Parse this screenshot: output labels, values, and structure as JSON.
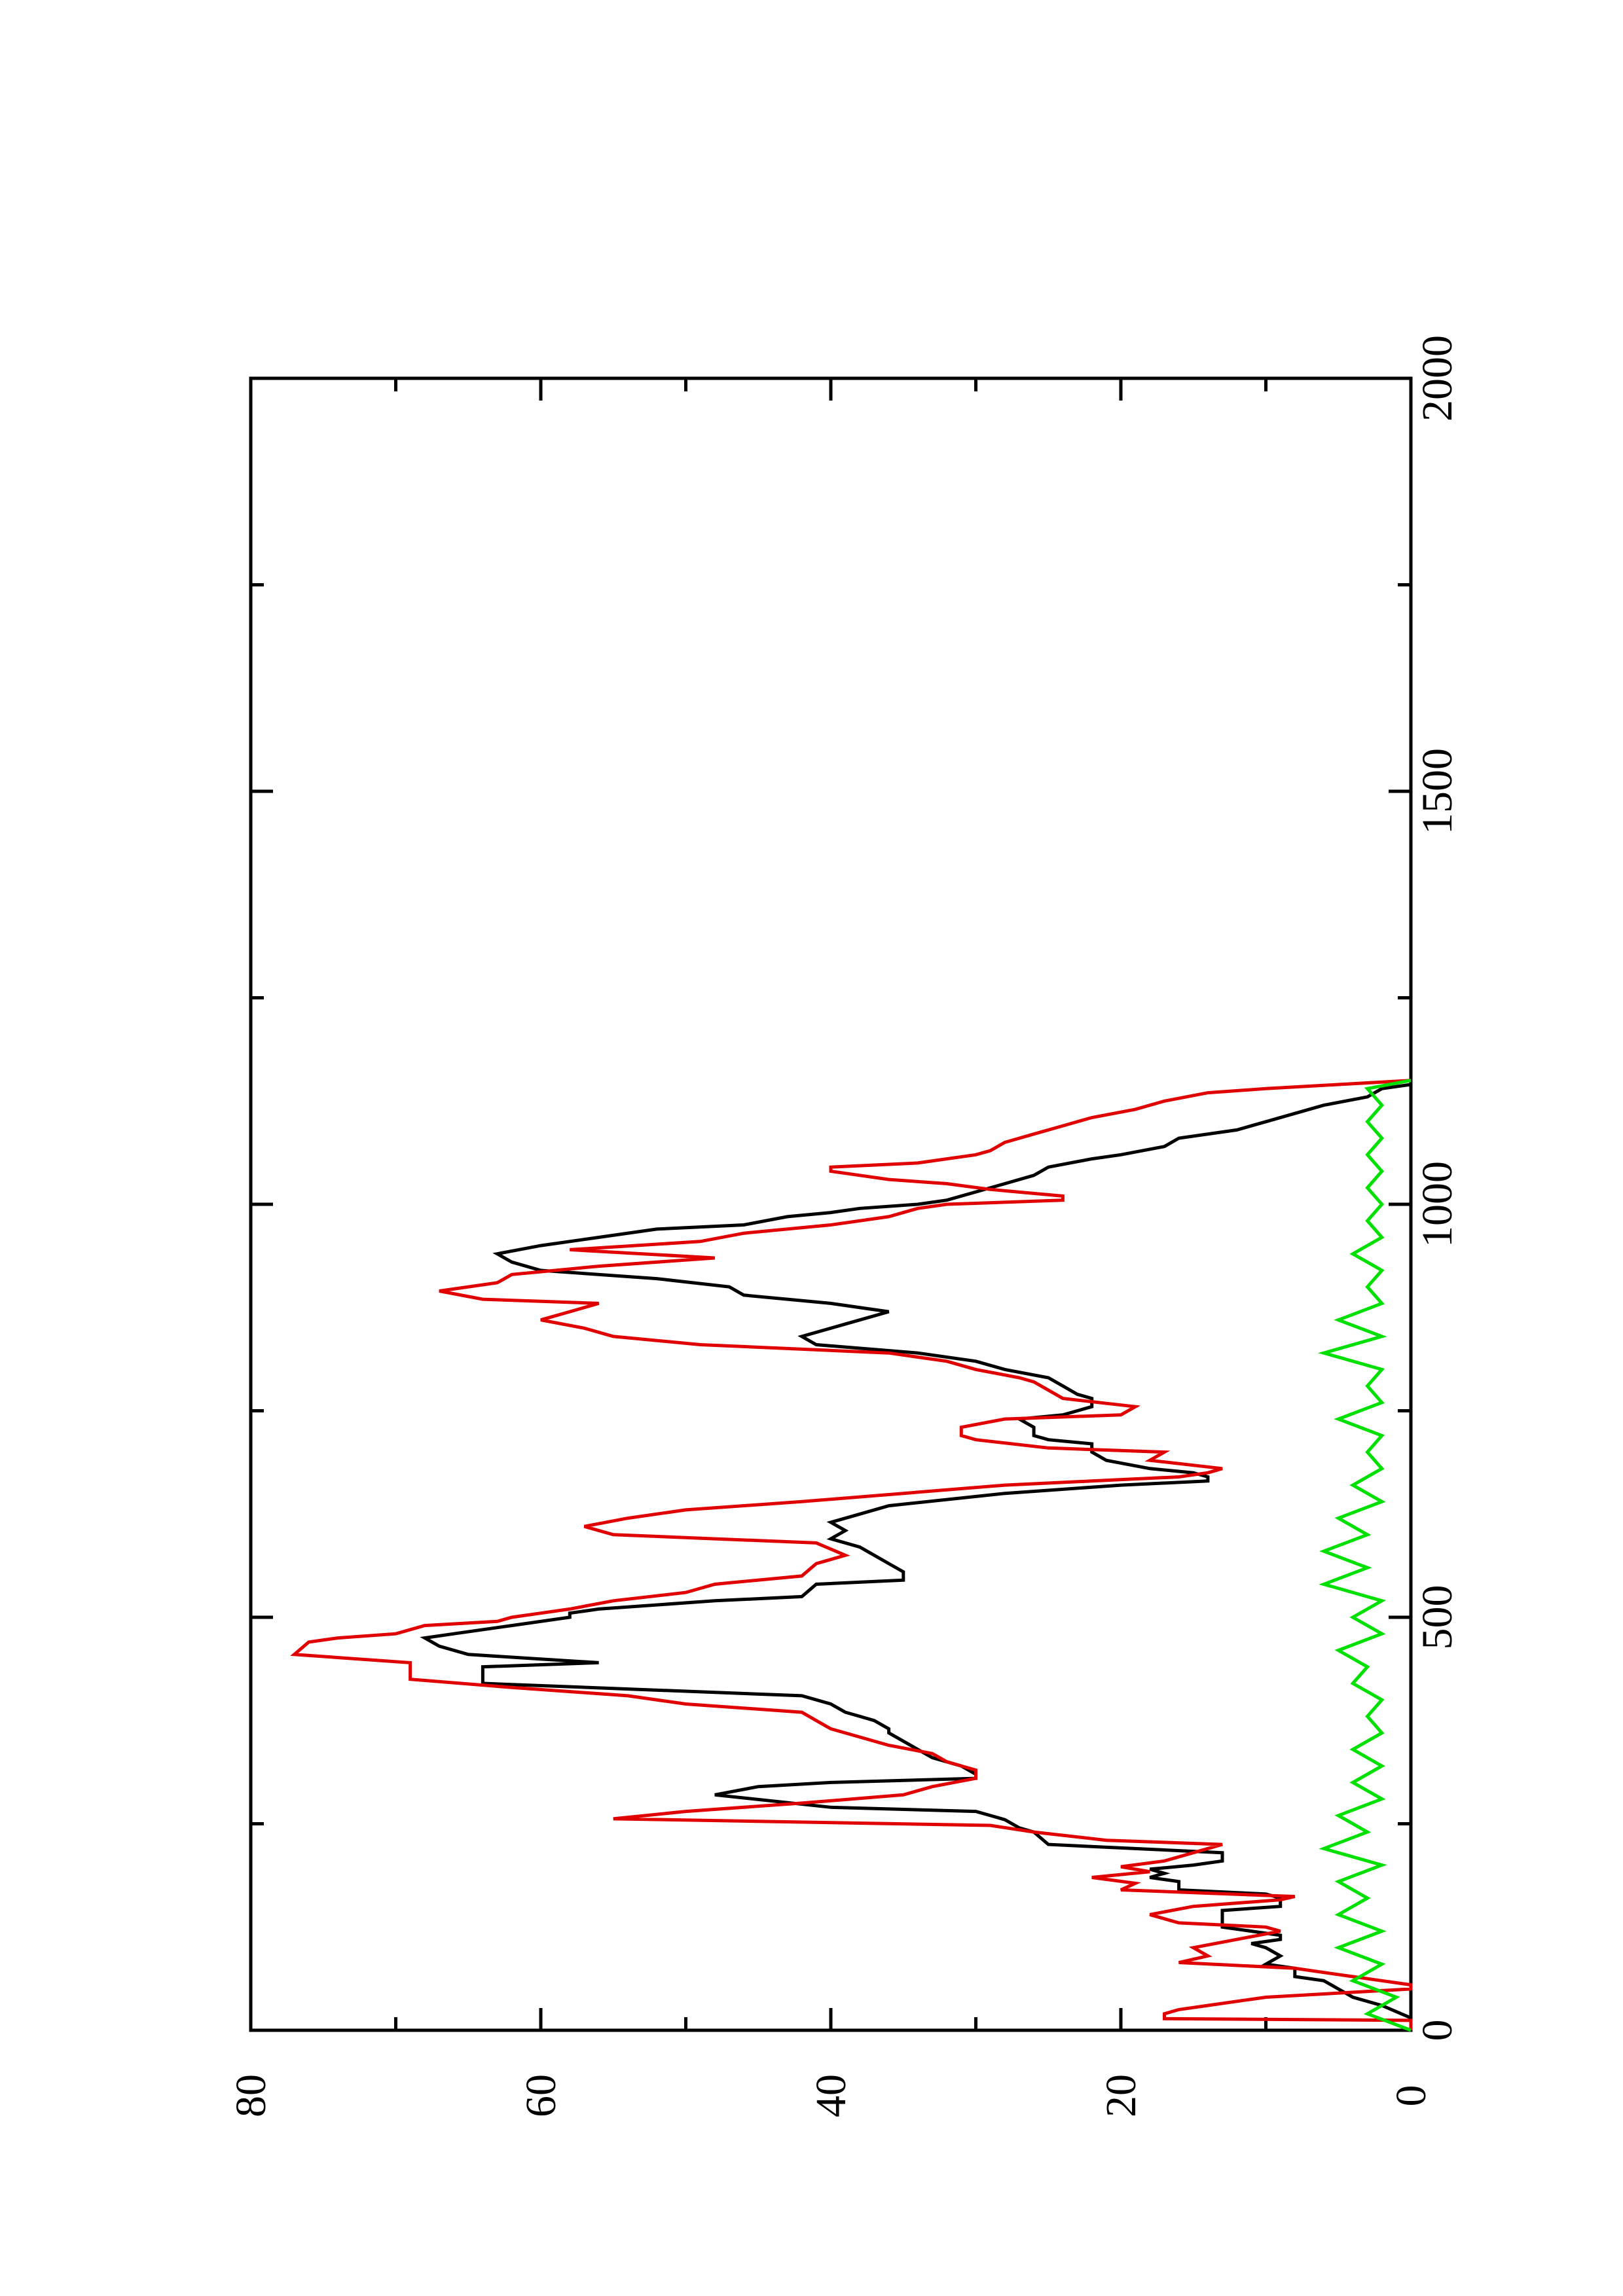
{
  "chart_data": {
    "type": "line",
    "title": "",
    "xlabel": "",
    "ylabel": "",
    "orientation": "rotated-90-ccw",
    "xlim": [
      0,
      2000
    ],
    "ylim": [
      0,
      80
    ],
    "x_ticks": [
      "0",
      "500",
      "1000",
      "1500",
      "2000"
    ],
    "x_minor_ticks": [
      250,
      750,
      1250,
      1750
    ],
    "y_ticks": [
      "0",
      "20",
      "40",
      "60",
      "80"
    ],
    "y_minor_ticks": [
      10,
      30,
      50,
      70
    ],
    "grid": false,
    "legend": "none",
    "series": [
      {
        "color": "#000000",
        "points": [
          [
            0,
            0
          ],
          [
            15,
            0
          ],
          [
            30,
            2
          ],
          [
            40,
            4
          ],
          [
            50,
            5
          ],
          [
            60,
            6
          ],
          [
            65,
            8
          ],
          [
            75,
            8
          ],
          [
            80,
            10
          ],
          [
            90,
            9
          ],
          [
            100,
            10
          ],
          [
            105,
            11
          ],
          [
            110,
            9
          ],
          [
            115,
            9
          ],
          [
            125,
            13
          ],
          [
            145,
            13
          ],
          [
            150,
            9
          ],
          [
            160,
            9
          ],
          [
            165,
            10
          ],
          [
            170,
            16
          ],
          [
            180,
            16
          ],
          [
            185,
            18
          ],
          [
            190,
            17
          ],
          [
            195,
            18
          ],
          [
            200,
            15
          ],
          [
            205,
            13
          ],
          [
            215,
            13
          ],
          [
            225,
            25
          ],
          [
            240,
            26
          ],
          [
            245,
            27
          ],
          [
            255,
            28
          ],
          [
            260,
            29
          ],
          [
            265,
            30
          ],
          [
            270,
            40
          ],
          [
            285,
            48
          ],
          [
            295,
            45
          ],
          [
            300,
            40
          ],
          [
            305,
            30
          ],
          [
            310,
            30
          ],
          [
            320,
            31
          ],
          [
            330,
            33
          ],
          [
            340,
            34
          ],
          [
            350,
            35
          ],
          [
            360,
            36
          ],
          [
            365,
            36
          ],
          [
            375,
            37
          ],
          [
            380,
            38
          ],
          [
            385,
            39
          ],
          [
            395,
            40
          ],
          [
            405,
            42
          ],
          [
            420,
            64
          ],
          [
            440,
            64
          ],
          [
            445,
            56
          ],
          [
            455,
            65
          ],
          [
            465,
            67
          ],
          [
            475,
            68
          ],
          [
            480,
            66
          ],
          [
            490,
            62
          ],
          [
            500,
            58
          ],
          [
            505,
            58
          ],
          [
            510,
            56
          ],
          [
            520,
            48
          ],
          [
            525,
            42
          ],
          [
            540,
            41
          ],
          [
            545,
            35
          ],
          [
            555,
            35
          ],
          [
            565,
            36
          ],
          [
            575,
            37
          ],
          [
            585,
            38
          ],
          [
            595,
            40
          ],
          [
            605,
            39
          ],
          [
            615,
            40
          ],
          [
            625,
            38
          ],
          [
            635,
            36
          ],
          [
            650,
            28
          ],
          [
            660,
            20
          ],
          [
            665,
            14
          ],
          [
            670,
            14
          ],
          [
            675,
            15
          ],
          [
            680,
            18
          ],
          [
            690,
            21
          ],
          [
            700,
            22
          ],
          [
            710,
            22
          ],
          [
            715,
            25
          ],
          [
            720,
            26
          ],
          [
            730,
            26
          ],
          [
            740,
            27
          ],
          [
            745,
            24
          ],
          [
            755,
            22
          ],
          [
            765,
            22
          ],
          [
            770,
            23
          ],
          [
            780,
            24
          ],
          [
            790,
            25
          ],
          [
            800,
            28
          ],
          [
            810,
            30
          ],
          [
            820,
            34
          ],
          [
            830,
            41
          ],
          [
            840,
            42
          ],
          [
            850,
            40
          ],
          [
            860,
            38
          ],
          [
            870,
            36
          ],
          [
            880,
            40
          ],
          [
            890,
            46
          ],
          [
            900,
            47
          ],
          [
            910,
            52
          ],
          [
            920,
            60
          ],
          [
            930,
            62
          ],
          [
            940,
            63
          ],
          [
            950,
            60
          ],
          [
            960,
            56
          ],
          [
            970,
            52
          ],
          [
            975,
            46
          ],
          [
            985,
            43
          ],
          [
            990,
            40
          ],
          [
            995,
            38
          ],
          [
            1000,
            34
          ],
          [
            1005,
            32
          ],
          [
            1015,
            30
          ],
          [
            1025,
            28
          ],
          [
            1035,
            26
          ],
          [
            1045,
            25
          ],
          [
            1055,
            22
          ],
          [
            1060,
            20
          ],
          [
            1070,
            17
          ],
          [
            1080,
            16
          ],
          [
            1090,
            12
          ],
          [
            1100,
            10
          ],
          [
            1110,
            8
          ],
          [
            1120,
            6
          ],
          [
            1130,
            3
          ],
          [
            1140,
            2
          ],
          [
            1145,
            0
          ],
          [
            1150,
            0
          ]
        ]
      },
      {
        "color": "#e00000",
        "points": [
          [
            0,
            0
          ],
          [
            12,
            0
          ],
          [
            14,
            17
          ],
          [
            20,
            17
          ],
          [
            25,
            16
          ],
          [
            30,
            14
          ],
          [
            40,
            10
          ],
          [
            50,
            0
          ],
          [
            55,
            0
          ],
          [
            60,
            2
          ],
          [
            65,
            4
          ],
          [
            70,
            6
          ],
          [
            75,
            8
          ],
          [
            82,
            16
          ],
          [
            90,
            14
          ],
          [
            100,
            15
          ],
          [
            110,
            12
          ],
          [
            120,
            9
          ],
          [
            125,
            10
          ],
          [
            130,
            16
          ],
          [
            140,
            18
          ],
          [
            150,
            15
          ],
          [
            158,
            9
          ],
          [
            162,
            8
          ],
          [
            170,
            20
          ],
          [
            178,
            19
          ],
          [
            185,
            22
          ],
          [
            192,
            18
          ],
          [
            198,
            20
          ],
          [
            205,
            17
          ],
          [
            215,
            15
          ],
          [
            225,
            13
          ],
          [
            230,
            21
          ],
          [
            240,
            26
          ],
          [
            248,
            29
          ],
          [
            256,
            55
          ],
          [
            265,
            50
          ],
          [
            275,
            42
          ],
          [
            285,
            35
          ],
          [
            295,
            33
          ],
          [
            305,
            30
          ],
          [
            315,
            30
          ],
          [
            325,
            32
          ],
          [
            335,
            33
          ],
          [
            345,
            36
          ],
          [
            355,
            38
          ],
          [
            365,
            40
          ],
          [
            375,
            41
          ],
          [
            385,
            42
          ],
          [
            395,
            50
          ],
          [
            405,
            54
          ],
          [
            415,
            62
          ],
          [
            425,
            69
          ],
          [
            445,
            69
          ],
          [
            450,
            73
          ],
          [
            455,
            77
          ],
          [
            470,
            76
          ],
          [
            475,
            74
          ],
          [
            480,
            70
          ],
          [
            490,
            68
          ],
          [
            495,
            63
          ],
          [
            500,
            62
          ],
          [
            505,
            60
          ],
          [
            510,
            58
          ],
          [
            520,
            55
          ],
          [
            530,
            50
          ],
          [
            540,
            48
          ],
          [
            550,
            42
          ],
          [
            565,
            41
          ],
          [
            570,
            40
          ],
          [
            575,
            39
          ],
          [
            590,
            41
          ],
          [
            600,
            55
          ],
          [
            610,
            57
          ],
          [
            620,
            54
          ],
          [
            630,
            50
          ],
          [
            640,
            42
          ],
          [
            650,
            35
          ],
          [
            660,
            28
          ],
          [
            665,
            22
          ],
          [
            670,
            16
          ],
          [
            675,
            14
          ],
          [
            680,
            13
          ],
          [
            690,
            18
          ],
          [
            700,
            17
          ],
          [
            705,
            25
          ],
          [
            715,
            30
          ],
          [
            720,
            31
          ],
          [
            730,
            31
          ],
          [
            740,
            28
          ],
          [
            745,
            20
          ],
          [
            755,
            19
          ],
          [
            765,
            24
          ],
          [
            775,
            25
          ],
          [
            785,
            26
          ],
          [
            790,
            27
          ],
          [
            800,
            30
          ],
          [
            810,
            32
          ],
          [
            820,
            36
          ],
          [
            830,
            49
          ],
          [
            840,
            55
          ],
          [
            850,
            57
          ],
          [
            860,
            60
          ],
          [
            870,
            58
          ],
          [
            880,
            56
          ],
          [
            885,
            64
          ],
          [
            895,
            67
          ],
          [
            905,
            63
          ],
          [
            915,
            62
          ],
          [
            925,
            56
          ],
          [
            935,
            48
          ],
          [
            945,
            58
          ],
          [
            955,
            49
          ],
          [
            965,
            46
          ],
          [
            975,
            40
          ],
          [
            985,
            36
          ],
          [
            995,
            34
          ],
          [
            1000,
            32
          ],
          [
            1005,
            24
          ],
          [
            1010,
            24
          ],
          [
            1018,
            29
          ],
          [
            1025,
            32
          ],
          [
            1030,
            36
          ],
          [
            1035,
            38
          ],
          [
            1040,
            40
          ],
          [
            1045,
            40
          ],
          [
            1050,
            34
          ],
          [
            1060,
            30
          ],
          [
            1065,
            29
          ],
          [
            1075,
            28
          ],
          [
            1085,
            26
          ],
          [
            1095,
            24
          ],
          [
            1105,
            22
          ],
          [
            1115,
            19
          ],
          [
            1125,
            17
          ],
          [
            1135,
            14
          ],
          [
            1140,
            10
          ],
          [
            1145,
            5
          ],
          [
            1150,
            0
          ]
        ]
      },
      {
        "color": "#00e000",
        "points": [
          [
            0,
            0
          ],
          [
            20,
            3
          ],
          [
            40,
            1
          ],
          [
            60,
            4
          ],
          [
            80,
            2
          ],
          [
            100,
            5
          ],
          [
            120,
            2
          ],
          [
            140,
            5
          ],
          [
            160,
            3
          ],
          [
            180,
            5
          ],
          [
            200,
            2
          ],
          [
            220,
            6
          ],
          [
            240,
            3
          ],
          [
            260,
            5
          ],
          [
            280,
            2
          ],
          [
            300,
            4
          ],
          [
            320,
            2
          ],
          [
            340,
            4
          ],
          [
            360,
            2
          ],
          [
            380,
            3
          ],
          [
            400,
            2
          ],
          [
            420,
            4
          ],
          [
            440,
            3
          ],
          [
            460,
            5
          ],
          [
            480,
            2
          ],
          [
            500,
            4
          ],
          [
            520,
            2
          ],
          [
            540,
            6
          ],
          [
            560,
            3
          ],
          [
            580,
            6
          ],
          [
            600,
            3
          ],
          [
            620,
            5
          ],
          [
            640,
            2
          ],
          [
            660,
            4
          ],
          [
            680,
            2
          ],
          [
            700,
            3
          ],
          [
            720,
            2
          ],
          [
            740,
            5
          ],
          [
            760,
            2
          ],
          [
            780,
            3
          ],
          [
            800,
            2
          ],
          [
            820,
            6
          ],
          [
            840,
            2
          ],
          [
            860,
            5
          ],
          [
            880,
            2
          ],
          [
            900,
            3
          ],
          [
            920,
            2
          ],
          [
            940,
            4
          ],
          [
            960,
            2
          ],
          [
            980,
            3
          ],
          [
            1000,
            2
          ],
          [
            1020,
            3
          ],
          [
            1040,
            2
          ],
          [
            1060,
            3
          ],
          [
            1080,
            2
          ],
          [
            1100,
            3
          ],
          [
            1120,
            2
          ],
          [
            1140,
            3
          ],
          [
            1150,
            0
          ]
        ]
      }
    ]
  }
}
